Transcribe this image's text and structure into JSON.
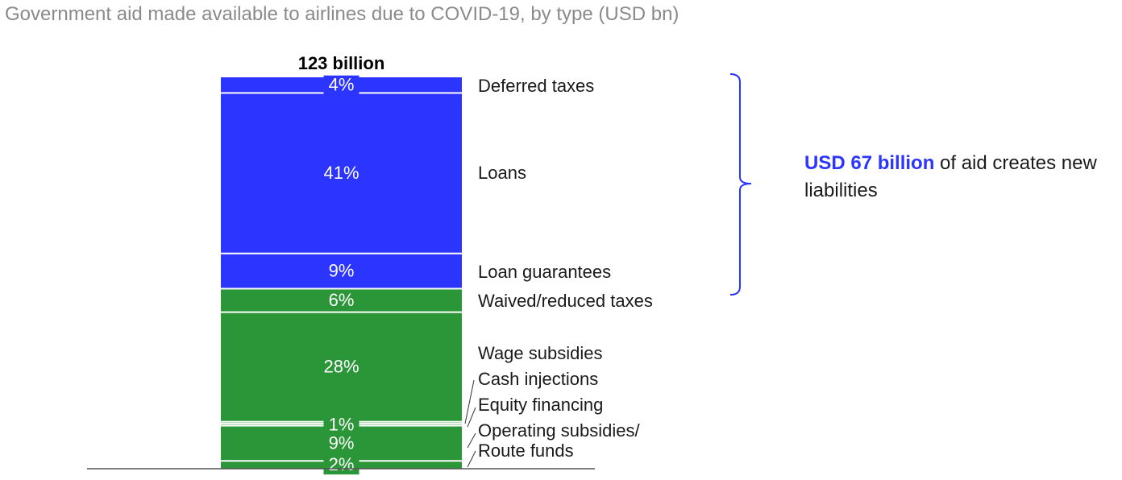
{
  "title": "Government aid made available to airlines due to COVID-19, by type (USD bn)",
  "callout": {
    "highlight": "USD 67 billion",
    "text": " of aid creates new liabilities"
  },
  "colors": {
    "blue": "#2b35ff",
    "green": "#2a9637",
    "axis": "#555555",
    "title": "#8a8a8a"
  },
  "chart_data": {
    "type": "bar",
    "stacked": true,
    "total_label": "123 billion",
    "unit": "%",
    "segments": [
      {
        "name": "Route funds",
        "value": 2,
        "label": "2%",
        "group": "green"
      },
      {
        "name": "Operating subsidies/",
        "value": 9,
        "label": "9%",
        "group": "green"
      },
      {
        "name": "Equity financing",
        "value": 0.5,
        "label": "1%",
        "group": "green"
      },
      {
        "name": "Cash injections",
        "value": 0.5,
        "label": "",
        "group": "green"
      },
      {
        "name": "Wage subsidies",
        "value": 28,
        "label": "28%",
        "group": "green"
      },
      {
        "name": "Waived/reduced taxes",
        "value": 6,
        "label": "6%",
        "group": "green"
      },
      {
        "name": "Loan guarantees",
        "value": 9,
        "label": "9%",
        "group": "blue"
      },
      {
        "name": "Loans",
        "value": 41,
        "label": "41%",
        "group": "blue"
      },
      {
        "name": "Deferred taxes",
        "value": 4,
        "label": "4%",
        "group": "blue"
      }
    ]
  }
}
